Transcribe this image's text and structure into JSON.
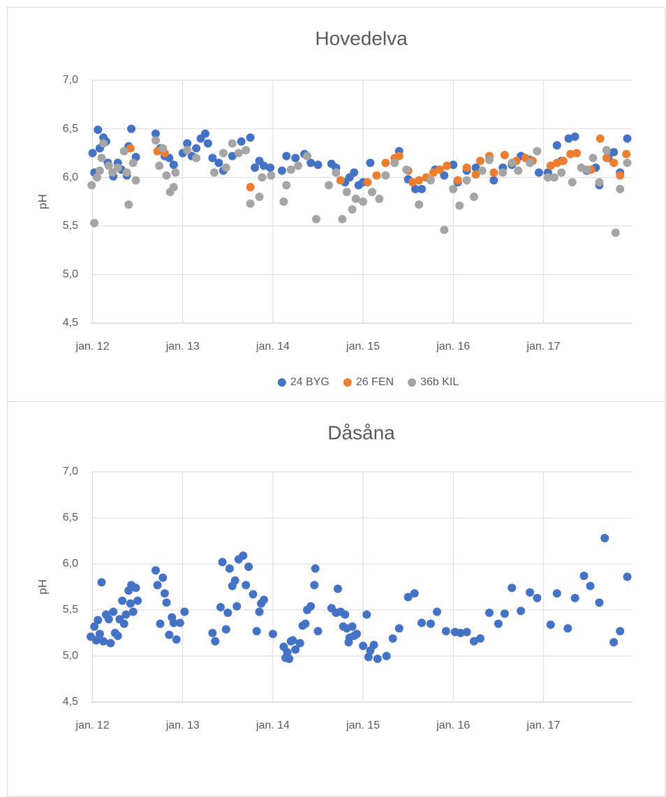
{
  "chart_data": [
    {
      "type": "scatter",
      "title": "Hovedelva",
      "y_label": "pH",
      "xlim": [
        2011.98,
        2017.98
      ],
      "xticks": [
        {
          "value": 2012,
          "label": "jan. 12"
        },
        {
          "value": 2013,
          "label": "jan. 13"
        },
        {
          "value": 2014,
          "label": "jan. 14"
        },
        {
          "value": 2015,
          "label": "jan. 15"
        },
        {
          "value": 2016,
          "label": "jan. 16"
        },
        {
          "value": 2017,
          "label": "jan. 17"
        }
      ],
      "ylim": [
        4.5,
        7
      ],
      "yticks": [
        {
          "value": 4.5,
          "label": "4,5"
        },
        {
          "value": 5,
          "label": "5,0"
        },
        {
          "value": 5.5,
          "label": "5,5"
        },
        {
          "value": 6,
          "label": "6,0"
        },
        {
          "value": 6.5,
          "label": "6,5"
        },
        {
          "value": 7,
          "label": "7,0"
        }
      ],
      "grid": true,
      "legend": "bottom",
      "series": [
        {
          "name": "24 BYG",
          "color": "#4472c4",
          "x": [
            2012.0,
            2012.02,
            2012.06,
            2012.08,
            2012.12,
            2012.15,
            2012.17,
            2012.23,
            2012.28,
            2012.32,
            2012.38,
            2012.4,
            2012.43,
            2012.48,
            2012.7,
            2012.75,
            2012.8,
            2012.85,
            2012.9,
            2013.0,
            2013.05,
            2013.1,
            2013.15,
            2013.2,
            2013.25,
            2013.28,
            2013.33,
            2013.4,
            2013.45,
            2013.55,
            2013.65,
            2013.75,
            2013.8,
            2013.85,
            2013.9,
            2013.97,
            2014.1,
            2014.15,
            2014.25,
            2014.35,
            2014.42,
            2014.5,
            2014.65,
            2014.7,
            2014.8,
            2014.85,
            2014.9,
            2014.95,
            2015.0,
            2015.08,
            2015.4,
            2015.5,
            2015.58,
            2015.65,
            2015.8,
            2015.9,
            2016.0,
            2016.05,
            2016.15,
            2016.25,
            2016.45,
            2016.55,
            2016.65,
            2016.75,
            2016.85,
            2016.95,
            2017.05,
            2017.15,
            2017.2,
            2017.28,
            2017.35,
            2017.48,
            2017.58,
            2017.62,
            2017.72,
            2017.78,
            2017.85,
            2017.93
          ],
          "values": [
            6.25,
            6.05,
            6.49,
            6.3,
            6.41,
            6.37,
            6.15,
            6.01,
            6.15,
            6.08,
            6.02,
            6.32,
            6.5,
            6.21,
            6.45,
            6.3,
            6.22,
            6.2,
            6.13,
            6.25,
            6.35,
            6.22,
            6.3,
            6.4,
            6.45,
            6.35,
            6.2,
            6.15,
            6.07,
            6.22,
            6.37,
            6.41,
            6.1,
            6.17,
            6.12,
            6.1,
            6.07,
            6.22,
            6.2,
            6.24,
            6.15,
            6.13,
            6.14,
            6.1,
            5.95,
            6.0,
            6.05,
            5.92,
            5.95,
            6.15,
            6.27,
            5.98,
            5.88,
            5.88,
            6.08,
            6.02,
            6.13,
            5.95,
            6.07,
            6.1,
            5.97,
            6.1,
            6.13,
            6.22,
            6.18,
            6.05,
            6.05,
            6.33,
            6.17,
            6.4,
            6.42,
            6.07,
            6.1,
            5.92,
            6.2,
            6.26,
            6.05,
            6.4
          ]
        },
        {
          "name": "26 FEN",
          "color": "#ed7d31",
          "x": [
            2012.42,
            2012.72,
            2012.8,
            2013.75,
            2014.75,
            2015.05,
            2015.15,
            2015.25,
            2015.35,
            2015.4,
            2015.5,
            2015.55,
            2015.62,
            2015.7,
            2015.78,
            2015.85,
            2015.93,
            2016.05,
            2016.15,
            2016.25,
            2016.3,
            2016.4,
            2016.45,
            2016.57,
            2016.7,
            2016.8,
            2016.88,
            2017.08,
            2017.15,
            2017.22,
            2017.3,
            2017.37,
            2017.53,
            2017.63,
            2017.7,
            2017.78,
            2017.85,
            2017.92
          ],
          "values": [
            6.3,
            6.27,
            6.25,
            5.9,
            5.97,
            5.95,
            6.02,
            6.15,
            6.2,
            6.22,
            6.07,
            5.95,
            5.97,
            6.0,
            6.05,
            6.08,
            6.12,
            5.97,
            6.1,
            6.03,
            6.17,
            6.22,
            6.05,
            6.23,
            6.17,
            6.2,
            6.17,
            6.12,
            6.15,
            6.17,
            6.24,
            6.25,
            6.08,
            6.4,
            6.2,
            6.15,
            6.02,
            6.24
          ]
        },
        {
          "name": "36b KIL",
          "color": "#a5a5a5",
          "x": [
            2011.99,
            2012.02,
            2012.05,
            2012.08,
            2012.1,
            2012.12,
            2012.18,
            2012.22,
            2012.28,
            2012.35,
            2012.38,
            2012.4,
            2012.45,
            2012.48,
            2012.7,
            2012.74,
            2012.78,
            2012.82,
            2012.86,
            2012.9,
            2012.92,
            2013.05,
            2013.15,
            2013.35,
            2013.45,
            2013.48,
            2013.55,
            2013.62,
            2013.7,
            2013.75,
            2013.85,
            2013.88,
            2013.98,
            2014.12,
            2014.15,
            2014.2,
            2014.28,
            2014.38,
            2014.48,
            2014.62,
            2014.7,
            2014.77,
            2014.82,
            2014.88,
            2014.92,
            2015.0,
            2015.1,
            2015.18,
            2015.25,
            2015.35,
            2015.48,
            2015.62,
            2015.75,
            2015.9,
            2016.0,
            2016.07,
            2016.15,
            2016.23,
            2016.32,
            2016.4,
            2016.55,
            2016.65,
            2016.72,
            2016.85,
            2016.93,
            2017.05,
            2017.12,
            2017.2,
            2017.32,
            2017.42,
            2017.48,
            2017.55,
            2017.62,
            2017.7,
            2017.8,
            2017.85,
            2017.93
          ],
          "values": [
            5.92,
            5.53,
            6.0,
            6.07,
            6.2,
            6.35,
            6.12,
            6.05,
            6.1,
            6.27,
            6.05,
            5.72,
            6.15,
            5.97,
            6.38,
            6.12,
            6.3,
            6.02,
            5.85,
            5.9,
            6.05,
            6.28,
            6.2,
            6.05,
            6.25,
            6.1,
            6.35,
            6.25,
            6.28,
            5.73,
            5.8,
            6.0,
            6.02,
            5.75,
            5.92,
            6.08,
            6.12,
            6.22,
            5.57,
            5.92,
            6.05,
            5.57,
            5.85,
            5.67,
            5.78,
            5.75,
            5.85,
            5.78,
            6.02,
            6.15,
            6.08,
            5.72,
            5.97,
            5.46,
            5.88,
            5.71,
            5.97,
            5.8,
            6.07,
            6.18,
            6.05,
            6.15,
            6.07,
            6.15,
            6.27,
            6.0,
            6.0,
            6.05,
            5.95,
            6.1,
            6.08,
            6.2,
            5.95,
            6.28,
            5.43,
            5.88,
            6.15
          ]
        }
      ]
    },
    {
      "type": "scatter",
      "title": "Dåsåna",
      "y_label": "pH",
      "xlim": [
        2011.98,
        2017.98
      ],
      "xticks": [
        {
          "value": 2012,
          "label": "jan. 12"
        },
        {
          "value": 2013,
          "label": "jan. 13"
        },
        {
          "value": 2014,
          "label": "jan. 14"
        },
        {
          "value": 2015,
          "label": "jan. 15"
        },
        {
          "value": 2016,
          "label": "jan. 16"
        },
        {
          "value": 2017,
          "label": "jan. 17"
        }
      ],
      "ylim": [
        4.5,
        7
      ],
      "yticks": [
        {
          "value": 4.5,
          "label": "4,5"
        },
        {
          "value": 5,
          "label": "5,0"
        },
        {
          "value": 5.5,
          "label": "5,5"
        },
        {
          "value": 6,
          "label": "6,0"
        },
        {
          "value": 6.5,
          "label": "6,5"
        },
        {
          "value": 7,
          "label": "7,0"
        }
      ],
      "grid": true,
      "color": "#4472c4",
      "x": [
        2011.98,
        2012.02,
        2012.04,
        2012.06,
        2012.08,
        2012.1,
        2012.12,
        2012.15,
        2012.18,
        2012.2,
        2012.23,
        2012.25,
        2012.28,
        2012.3,
        2012.33,
        2012.35,
        2012.37,
        2012.4,
        2012.42,
        2012.43,
        2012.45,
        2012.48,
        2012.5,
        2012.7,
        2012.72,
        2012.75,
        2012.78,
        2012.8,
        2012.82,
        2012.85,
        2012.88,
        2012.9,
        2012.93,
        2012.97,
        2013.02,
        2013.33,
        2013.36,
        2013.42,
        2013.44,
        2013.48,
        2013.5,
        2013.52,
        2013.55,
        2013.58,
        2013.6,
        2013.62,
        2013.67,
        2013.7,
        2013.73,
        2013.78,
        2013.82,
        2013.85,
        2013.87,
        2013.9,
        2014.0,
        2014.12,
        2014.14,
        2014.16,
        2014.18,
        2014.2,
        2014.22,
        2014.25,
        2014.3,
        2014.33,
        2014.36,
        2014.38,
        2014.42,
        2014.46,
        2014.47,
        2014.5,
        2014.65,
        2014.7,
        2014.72,
        2014.75,
        2014.78,
        2014.8,
        2014.82,
        2014.84,
        2014.85,
        2014.88,
        2014.9,
        2014.93,
        2015.0,
        2015.04,
        2015.06,
        2015.08,
        2015.12,
        2015.16,
        2015.26,
        2015.33,
        2015.4,
        2015.5,
        2015.57,
        2015.65,
        2015.75,
        2015.82,
        2015.92,
        2016.02,
        2016.08,
        2016.15,
        2016.23,
        2016.3,
        2016.4,
        2016.5,
        2016.57,
        2016.65,
        2016.75,
        2016.85,
        2016.93,
        2017.08,
        2017.15,
        2017.27,
        2017.35,
        2017.45,
        2017.52,
        2017.62,
        2017.68,
        2017.78,
        2017.85,
        2017.93
      ],
      "values": [
        5.21,
        5.32,
        5.17,
        5.39,
        5.24,
        5.8,
        5.16,
        5.45,
        5.4,
        5.14,
        5.48,
        5.25,
        5.22,
        5.4,
        5.6,
        5.35,
        5.45,
        5.71,
        5.57,
        5.77,
        5.48,
        5.74,
        5.6,
        5.93,
        5.77,
        5.35,
        5.85,
        5.68,
        5.58,
        5.23,
        5.42,
        5.36,
        5.18,
        5.36,
        5.48,
        5.25,
        5.16,
        5.53,
        6.02,
        5.29,
        5.47,
        5.95,
        5.76,
        5.82,
        5.54,
        6.05,
        6.09,
        5.77,
        5.97,
        5.67,
        5.27,
        5.48,
        5.57,
        5.61,
        5.24,
        5.1,
        4.98,
        5.04,
        4.97,
        5.16,
        5.17,
        5.07,
        5.14,
        5.33,
        5.35,
        5.5,
        5.54,
        5.77,
        5.95,
        5.27,
        5.52,
        5.47,
        5.73,
        5.48,
        5.32,
        5.45,
        5.3,
        5.15,
        5.2,
        5.32,
        5.22,
        5.24,
        5.11,
        5.45,
        4.99,
        5.06,
        5.12,
        4.97,
        5.0,
        5.19,
        5.3,
        5.64,
        5.68,
        5.36,
        5.35,
        5.48,
        5.27,
        5.26,
        5.25,
        5.26,
        5.16,
        5.19,
        5.47,
        5.35,
        5.46,
        5.74,
        5.49,
        5.69,
        5.63,
        5.34,
        5.68,
        5.3,
        5.63,
        5.87,
        5.76,
        5.58,
        6.28,
        5.15,
        5.27,
        5.86
      ]
    }
  ]
}
